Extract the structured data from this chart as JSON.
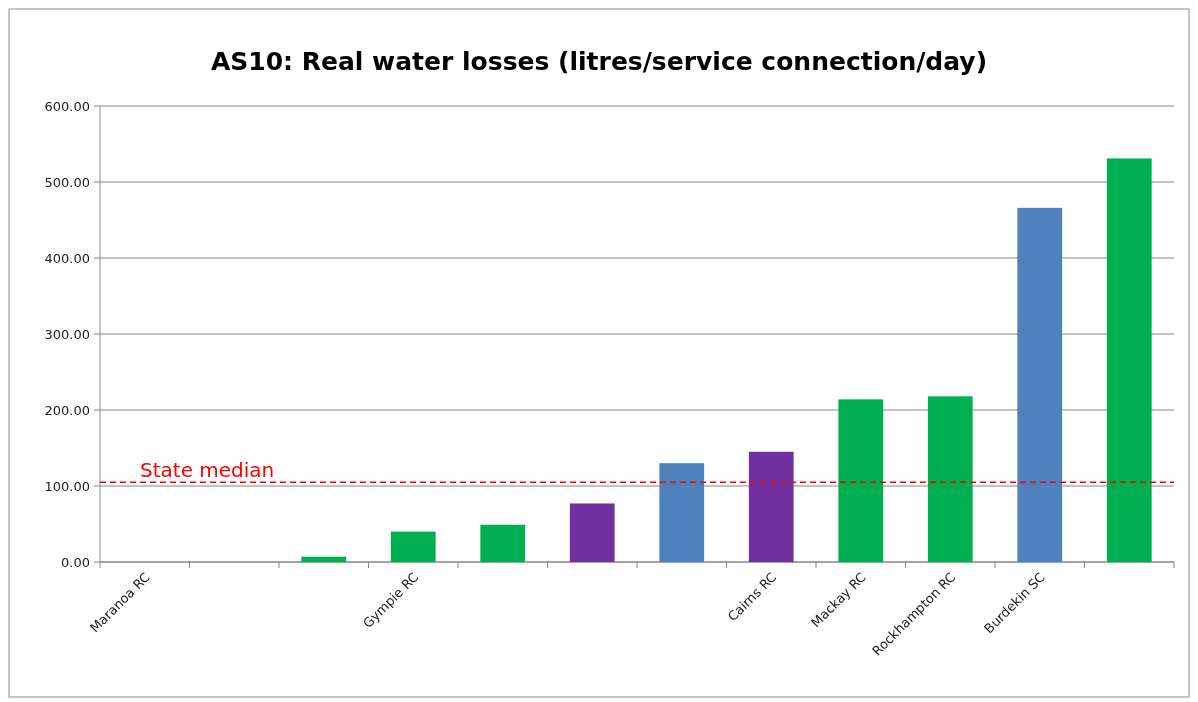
{
  "chart_data": {
    "type": "bar",
    "title": "AS10: Real water losses (litres/service connection/day)",
    "categories": [
      "Maranoa RC",
      null,
      null,
      "Gympie RC",
      null,
      null,
      null,
      "Cairns RC",
      "Mackay RC",
      "Rockhampton RC",
      "Burdekin SC",
      null
    ],
    "values": [
      null,
      null,
      7,
      40,
      49,
      77,
      130,
      145,
      214,
      218,
      466,
      531
    ],
    "colors": [
      null,
      null,
      "#00b050",
      "#00b050",
      "#00b050",
      "#7030a0",
      "#4f81bd",
      "#7030a0",
      "#00b050",
      "#00b050",
      "#4f81bd",
      "#00b050"
    ],
    "ylim": [
      0,
      600
    ],
    "yticks": [
      {
        "value": 0,
        "label": "0.00"
      },
      {
        "value": 100,
        "label": "100.00"
      },
      {
        "value": 200,
        "label": "200.00"
      },
      {
        "value": 300,
        "label": "300.00"
      },
      {
        "value": 400,
        "label": "400.00"
      },
      {
        "value": 500,
        "label": "500.00"
      },
      {
        "value": 600,
        "label": "600.00"
      }
    ],
    "grid": "y",
    "ref_lines": [
      {
        "axis": "y",
        "value": 105,
        "label": "State median",
        "color": "#ff0000",
        "line_style": "dashed"
      }
    ]
  }
}
